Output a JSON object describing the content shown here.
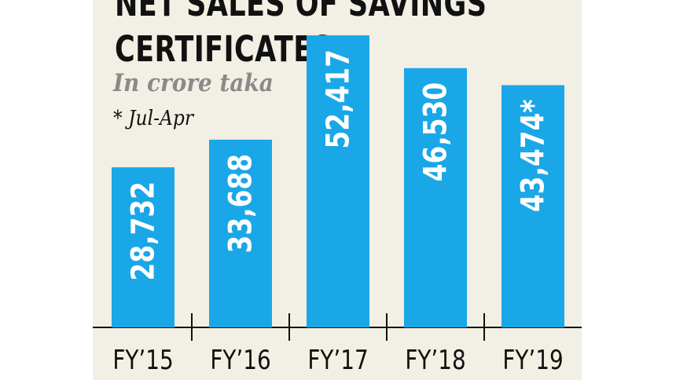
{
  "chart_data": {
    "type": "bar",
    "title_lines": [
      "NET SALES OF SAVINGS",
      "CERTIFICATES"
    ],
    "subtitle": "In crore taka",
    "note": "* Jul-Apr",
    "categories": [
      "FY’15",
      "FY’16",
      "FY’17",
      "FY’18",
      "FY’19"
    ],
    "values": [
      28732,
      33688,
      52417,
      46530,
      43474
    ],
    "value_labels": [
      "28,732",
      "33,688",
      "52,417",
      "46,530",
      "43,474*"
    ],
    "ylim": [
      0,
      52417
    ],
    "grid": false,
    "bar_color": "#1aa7e8"
  }
}
